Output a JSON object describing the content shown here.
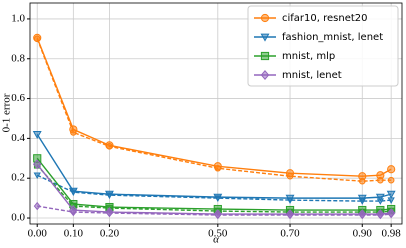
{
  "chart_data": {
    "type": "line",
    "xlabel": "α",
    "ylabel": "0-1 error",
    "x": [
      0,
      0.1,
      0.2,
      0.5,
      0.7,
      0.9,
      0.95,
      0.98
    ],
    "xlim": [
      -0.02,
      1.01
    ],
    "xticks": [
      {
        "value": 0,
        "label": "0.00"
      },
      {
        "value": 0.1,
        "label": "0.10"
      },
      {
        "value": 0.2,
        "label": "0.20"
      },
      {
        "value": 0.5,
        "label": "0.50"
      },
      {
        "value": 0.7,
        "label": "0.70"
      },
      {
        "value": 0.9,
        "label": "0.90"
      },
      {
        "value": 0.98,
        "label": "0.98"
      }
    ],
    "ylim": [
      -0.03,
      1.08
    ],
    "yticks": [
      {
        "value": 0,
        "label": "0.0"
      },
      0.2,
      0.4,
      0.6,
      0.8,
      {
        "value": 1,
        "label": "1.0"
      }
    ],
    "grid": true,
    "legend": "upper right",
    "series": [
      {
        "name": "cifar10, resnet20",
        "color": "#ff7f0e",
        "marker": "circle",
        "values": [
          0.905,
          0.445,
          0.365,
          0.26,
          0.225,
          0.21,
          0.215,
          0.245
        ],
        "dashed_values": [
          0.9,
          0.43,
          0.36,
          0.25,
          0.21,
          0.185,
          0.19,
          0.19
        ]
      },
      {
        "name": "fashion_mnist, lenet",
        "color": "#1f77b4",
        "marker": "triangle-down",
        "values": [
          0.42,
          0.135,
          0.12,
          0.105,
          0.1,
          0.1,
          0.105,
          0.12
        ],
        "dashed_values": [
          0.215,
          0.13,
          0.115,
          0.1,
          0.09,
          0.085,
          0.085,
          0.09
        ]
      },
      {
        "name": "mnist, mlp",
        "color": "#2ca02c",
        "marker": "square",
        "values": [
          0.3,
          0.07,
          0.055,
          0.045,
          0.04,
          0.04,
          0.04,
          0.045
        ],
        "dashed_values": [
          0.265,
          0.06,
          0.05,
          0.035,
          0.03,
          0.03,
          0.03,
          0.035
        ]
      },
      {
        "name": "mnist, lenet",
        "color": "#9467bd",
        "marker": "diamond",
        "values": [
          0.27,
          0.04,
          0.03,
          0.02,
          0.02,
          0.02,
          0.02,
          0.025
        ],
        "dashed_values": [
          0.06,
          0.03,
          0.025,
          0.015,
          0.015,
          0.015,
          0.015,
          0.02
        ]
      }
    ]
  }
}
